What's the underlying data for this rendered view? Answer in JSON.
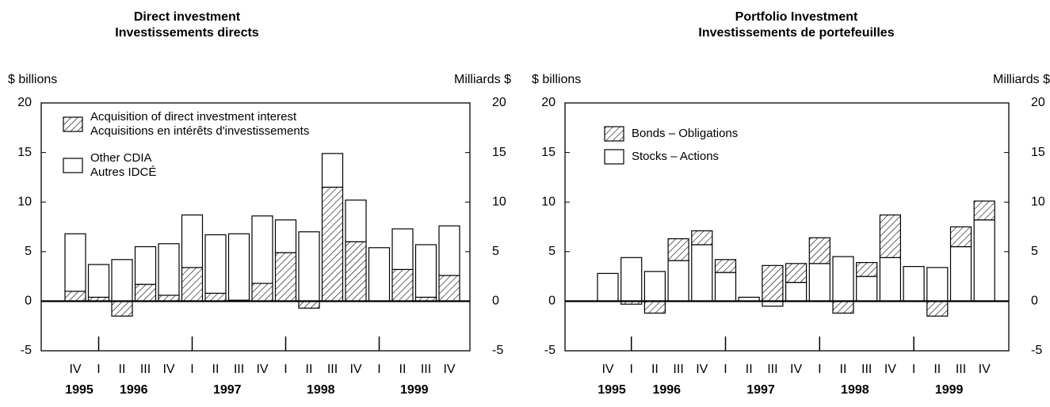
{
  "chart_data": [
    {
      "type": "bar",
      "stacked": true,
      "title": [
        "Direct investment",
        "Investissements directs"
      ],
      "ylabel": "$ billions",
      "y2label": "Milliards $",
      "categories": [
        "IV",
        "I",
        "II",
        "III",
        "IV",
        "I",
        "II",
        "III",
        "IV",
        "I",
        "II",
        "III",
        "IV",
        "I",
        "II",
        "III",
        "IV"
      ],
      "years": [
        "1995",
        "1996",
        "1997",
        "1998",
        "1999"
      ],
      "series": [
        {
          "name": "Acquisition of direct investment interest\nAcquisitions en intérêts d'investissements",
          "color": "#ffffff",
          "hatch": true,
          "values": [
            1.0,
            0.4,
            -1.5,
            1.7,
            0.6,
            3.4,
            0.8,
            0.1,
            1.8,
            4.9,
            -0.7,
            11.5,
            6.0,
            0,
            3.2,
            0.4,
            2.6
          ]
        },
        {
          "name": "Other CDIA\nAutres IDCÉ",
          "color": "#ffffff",
          "hatch": false,
          "values": [
            5.8,
            3.3,
            4.2,
            3.8,
            5.2,
            5.3,
            5.9,
            6.7,
            6.8,
            3.3,
            7.0,
            3.4,
            4.2,
            5.4,
            4.1,
            5.3,
            5.0
          ]
        }
      ],
      "ylim": [
        -5,
        20
      ],
      "yticks": [
        -5,
        0,
        5,
        10,
        15,
        20
      ],
      "y2lim": [
        -5,
        20
      ],
      "y2ticks": [
        -5,
        0,
        5,
        10,
        15,
        20
      ],
      "legend": "upper left"
    },
    {
      "type": "bar",
      "stacked": true,
      "title": [
        "Portfolio Investment",
        "Investissements de portefeuilles"
      ],
      "ylabel": "$ billions",
      "y2label": "Milliards $",
      "categories": [
        "IV",
        "I",
        "II",
        "III",
        "IV",
        "I",
        "II",
        "III",
        "IV",
        "I",
        "II",
        "III",
        "IV",
        "I",
        "II",
        "III",
        "IV"
      ],
      "years": [
        "1995",
        "1996",
        "1997",
        "1998",
        "1999"
      ],
      "series": [
        {
          "name": "Stocks – Actions",
          "color": "#ffffff",
          "hatch": false,
          "values": [
            2.8,
            4.4,
            3.0,
            4.1,
            5.7,
            2.9,
            0.4,
            -0.5,
            1.9,
            3.8,
            4.5,
            2.5,
            4.4,
            3.5,
            3.4,
            5.5,
            8.2
          ]
        },
        {
          "name": "Bonds – Obligations",
          "color": "#ffffff",
          "hatch": true,
          "values": [
            0,
            -0.3,
            -1.2,
            2.2,
            1.4,
            1.3,
            0,
            3.6,
            1.9,
            2.6,
            -1.2,
            1.4,
            4.3,
            0,
            -1.5,
            2.0,
            1.9
          ]
        }
      ],
      "ylim": [
        -5,
        20
      ],
      "yticks": [
        -5,
        0,
        5,
        10,
        15,
        20
      ],
      "y2lim": [
        -5,
        20
      ],
      "y2ticks": [
        -5,
        0,
        5,
        10,
        15,
        20
      ],
      "legend": "upper left",
      "legend_order": "reverse"
    }
  ]
}
